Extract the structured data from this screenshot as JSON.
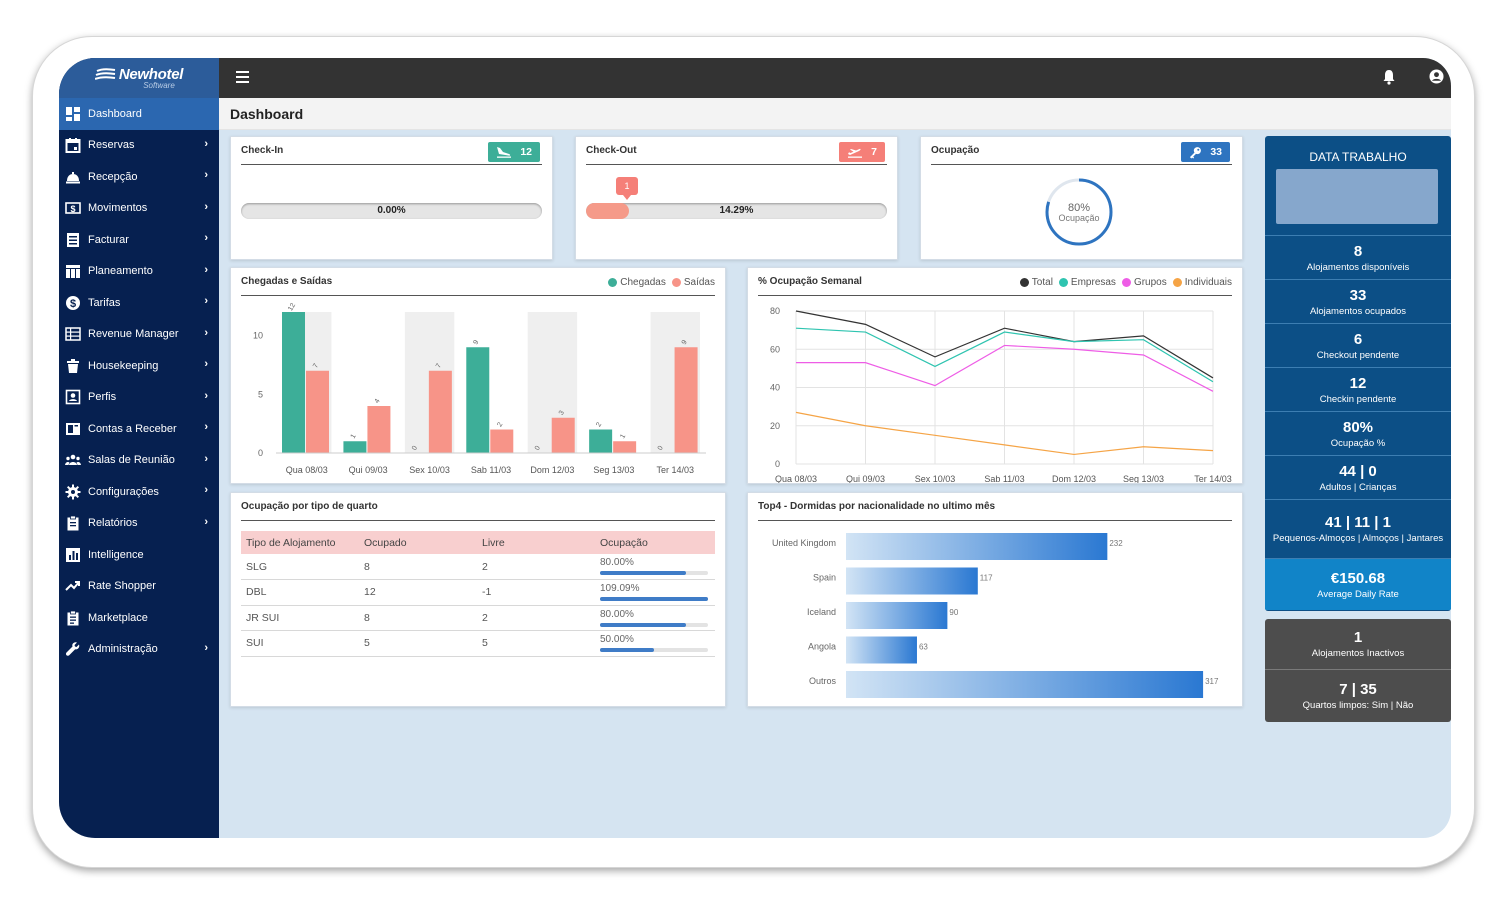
{
  "brand": {
    "name": "Newhotel",
    "subtitle": "Software"
  },
  "sidebar": {
    "items": [
      {
        "label": "Dashboard",
        "icon": "dashboard-icon",
        "active": true,
        "arrow": false
      },
      {
        "label": "Reservas",
        "icon": "calendar-icon",
        "arrow": true
      },
      {
        "label": "Recepção",
        "icon": "bell-service-icon",
        "arrow": true
      },
      {
        "label": "Movimentos",
        "icon": "money-icon",
        "arrow": true
      },
      {
        "label": "Facturar",
        "icon": "invoice-icon",
        "arrow": true
      },
      {
        "label": "Planeamento",
        "icon": "grid-plan-icon",
        "arrow": true
      },
      {
        "label": "Tarifas",
        "icon": "dollar-icon",
        "arrow": true
      },
      {
        "label": "Revenue Manager",
        "icon": "table-icon",
        "arrow": true
      },
      {
        "label": "Housekeeping",
        "icon": "trash-icon",
        "arrow": true
      },
      {
        "label": "Perfis",
        "icon": "id-card-icon",
        "arrow": true
      },
      {
        "label": "Contas a Receber",
        "icon": "receivable-icon",
        "arrow": true
      },
      {
        "label": "Salas de Reunião",
        "icon": "people-icon",
        "arrow": true
      },
      {
        "label": "Configurações",
        "icon": "gear-icon",
        "arrow": true
      },
      {
        "label": "Relatórios",
        "icon": "clipboard-icon",
        "arrow": true
      },
      {
        "label": "Intelligence",
        "icon": "bar-chart-icon",
        "arrow": false
      },
      {
        "label": "Rate Shopper",
        "icon": "trend-icon",
        "arrow": false
      },
      {
        "label": "Marketplace",
        "icon": "clipboard-list-icon",
        "arrow": false
      },
      {
        "label": "Administração",
        "icon": "wrench-icon",
        "arrow": true
      }
    ]
  },
  "page": {
    "title": "Dashboard"
  },
  "checkin": {
    "title": "Check-In",
    "count": "12",
    "percent_label": "0.00%",
    "progress": 0.0,
    "color": "#3dae98"
  },
  "checkout": {
    "title": "Check-Out",
    "count": "7",
    "percent_label": "14.29%",
    "progress": 0.1429,
    "bubble": "1",
    "color": "#f57f78"
  },
  "occupancy": {
    "title": "Ocupação",
    "count": "33",
    "percent_label": "80%",
    "label": "Ocupação",
    "value": 0.8,
    "color": "#2e74c0"
  },
  "arrivals": {
    "title": "Chegadas e Saídas",
    "legend": [
      {
        "label": "Chegadas",
        "color": "#3dae98"
      },
      {
        "label": "Saídas",
        "color": "#f79488"
      }
    ],
    "chart_data": {
      "type": "bar",
      "categories": [
        "Qua 08/03",
        "Qui 09/03",
        "Sex 10/03",
        "Sab 11/03",
        "Dom 12/03",
        "Seg 13/03",
        "Ter 14/03"
      ],
      "series": [
        {
          "name": "Chegadas",
          "values": [
            12,
            1,
            0,
            9,
            0,
            2,
            0
          ]
        },
        {
          "name": "Saídas",
          "values": [
            7,
            4,
            7,
            2,
            3,
            1,
            9
          ]
        }
      ],
      "yticks": [
        0,
        5,
        10
      ],
      "ylim": [
        0,
        12
      ]
    }
  },
  "weekly": {
    "title": "% Ocupação Semanal",
    "legend": [
      {
        "label": "Total",
        "color": "#333333"
      },
      {
        "label": "Empresas",
        "color": "#2fc4b0"
      },
      {
        "label": "Grupos",
        "color": "#ee5de6"
      },
      {
        "label": "Individuais",
        "color": "#f5a446"
      }
    ],
    "chart_data": {
      "type": "line",
      "categories": [
        "Qua 08/03",
        "Qui 09/03",
        "Sex 10/03",
        "Sab 11/03",
        "Dom 12/03",
        "Seg 13/03",
        "Ter 14/03"
      ],
      "series": [
        {
          "name": "Total",
          "values": [
            80,
            73,
            56,
            71,
            64,
            67,
            45
          ]
        },
        {
          "name": "Empresas",
          "values": [
            71,
            69,
            51,
            69,
            64,
            65,
            43
          ]
        },
        {
          "name": "Grupos",
          "values": [
            53,
            53,
            41,
            62,
            60,
            57,
            38
          ]
        },
        {
          "name": "Individuais",
          "values": [
            27,
            20,
            15,
            10,
            5,
            9,
            7
          ]
        }
      ],
      "yticks": [
        0,
        20,
        40,
        60,
        80
      ],
      "ylim": [
        0,
        80
      ]
    }
  },
  "room_types": {
    "title": "Ocupação por tipo de quarto",
    "headers": [
      "Tipo de Alojamento",
      "Ocupado",
      "Livre",
      "Ocupação"
    ],
    "rows": [
      {
        "type": "SLG",
        "occupied": "8",
        "free": "2",
        "occupancy": "80.00%",
        "value": 0.8
      },
      {
        "type": "DBL",
        "occupied": "12",
        "free": "-1",
        "occupancy": "109.09%",
        "value": 1.0
      },
      {
        "type": "JR SUI",
        "occupied": "8",
        "free": "2",
        "occupancy": "80.00%",
        "value": 0.8
      },
      {
        "type": "SUI",
        "occupied": "5",
        "free": "5",
        "occupancy": "50.00%",
        "value": 0.5
      }
    ]
  },
  "nationality": {
    "title": "Top4 - Dormidas por nacionalidade no ultimo mês",
    "chart_data": {
      "type": "bar",
      "orientation": "horizontal",
      "categories": [
        "United Kingdom",
        "Spain",
        "Iceland",
        "Angola",
        "Outros"
      ],
      "values": [
        232,
        117,
        90,
        63,
        317
      ],
      "xlim": [
        0,
        340
      ]
    }
  },
  "work_date": {
    "title": "DATA TRABALHO"
  },
  "stats": [
    {
      "value": "8",
      "label": "Alojamentos disponíveis"
    },
    {
      "value": "33",
      "label": "Alojamentos ocupados"
    },
    {
      "value": "6",
      "label": "Checkout pendente"
    },
    {
      "value": "12",
      "label": "Checkin pendente"
    },
    {
      "value": "80%",
      "label": "Ocupação %"
    },
    {
      "value": "44 | 0",
      "label": "Adultos | Crianças"
    },
    {
      "value": "41 | 11 | 1",
      "label": "Pequenos-Almoços | Almoços | Jantares"
    },
    {
      "value": "€150.68",
      "label": "Average Daily Rate"
    }
  ],
  "gray_stats": [
    {
      "value": "1",
      "label": "Alojamentos Inactivos"
    },
    {
      "value": "7 | 35",
      "label": "Quartos limpos: Sim | Não"
    }
  ]
}
